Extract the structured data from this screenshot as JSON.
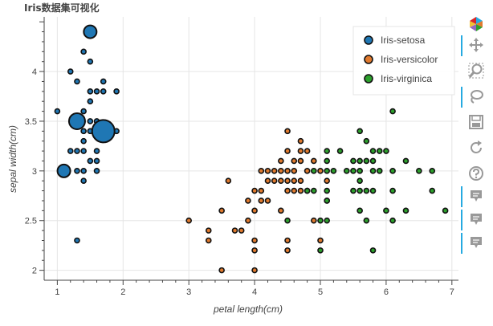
{
  "chart_data": {
    "type": "scatter",
    "title": "Iris数据集可视化",
    "xlabel": "petal length(cm)",
    "ylabel": "sepal width(cm)",
    "xlim": [
      0.8,
      7.1
    ],
    "ylim": [
      1.9,
      4.55
    ],
    "x_ticks": [
      1,
      2,
      3,
      4,
      5,
      6,
      7
    ],
    "y_ticks": [
      2,
      2.5,
      3,
      3.5,
      4
    ],
    "grid": true,
    "legend_position": "top-right",
    "series": [
      {
        "name": "Iris-setosa",
        "color": "#1f77b4",
        "points": [
          [
            1.0,
            3.6
          ],
          [
            1.1,
            3.0
          ],
          [
            1.2,
            4.0
          ],
          [
            1.2,
            3.2
          ],
          [
            1.3,
            3.9
          ],
          [
            1.3,
            3.5
          ],
          [
            1.3,
            3.2
          ],
          [
            1.3,
            3.0
          ],
          [
            1.3,
            2.3
          ],
          [
            1.4,
            4.2
          ],
          [
            1.4,
            3.6
          ],
          [
            1.4,
            3.4
          ],
          [
            1.4,
            3.3
          ],
          [
            1.4,
            3.2
          ],
          [
            1.4,
            3.0
          ],
          [
            1.4,
            2.9
          ],
          [
            1.5,
            4.4
          ],
          [
            1.5,
            4.1
          ],
          [
            1.5,
            3.8
          ],
          [
            1.5,
            3.7
          ],
          [
            1.5,
            3.5
          ],
          [
            1.5,
            3.4
          ],
          [
            1.5,
            3.1
          ],
          [
            1.6,
            3.8
          ],
          [
            1.6,
            3.5
          ],
          [
            1.6,
            3.4
          ],
          [
            1.6,
            3.2
          ],
          [
            1.6,
            3.1
          ],
          [
            1.6,
            3.0
          ],
          [
            1.7,
            3.9
          ],
          [
            1.7,
            3.8
          ],
          [
            1.7,
            3.4
          ],
          [
            1.9,
            3.8
          ],
          [
            1.9,
            3.4
          ]
        ],
        "big_points": [
          {
            "x": 1.5,
            "y": 4.4,
            "r": 8
          },
          {
            "x": 1.3,
            "y": 3.5,
            "r": 10
          },
          {
            "x": 1.1,
            "y": 3.0,
            "r": 8
          },
          {
            "x": 1.7,
            "y": 3.4,
            "r": 14
          }
        ]
      },
      {
        "name": "Iris-versicolor",
        "color": "#e07a2e",
        "points": [
          [
            3.0,
            2.5
          ],
          [
            3.3,
            2.4
          ],
          [
            3.3,
            2.3
          ],
          [
            3.5,
            2.6
          ],
          [
            3.5,
            2.0
          ],
          [
            3.6,
            2.9
          ],
          [
            3.7,
            2.4
          ],
          [
            3.8,
            2.4
          ],
          [
            3.9,
            2.7
          ],
          [
            3.9,
            2.5
          ],
          [
            4.0,
            2.8
          ],
          [
            4.0,
            2.6
          ],
          [
            4.0,
            2.3
          ],
          [
            4.0,
            2.2
          ],
          [
            4.0,
            2.0
          ],
          [
            4.1,
            3.0
          ],
          [
            4.1,
            2.8
          ],
          [
            4.1,
            2.7
          ],
          [
            4.2,
            3.0
          ],
          [
            4.2,
            2.9
          ],
          [
            4.2,
            2.7
          ],
          [
            4.3,
            3.0
          ],
          [
            4.3,
            2.9
          ],
          [
            4.4,
            3.1
          ],
          [
            4.4,
            3.0
          ],
          [
            4.4,
            2.9
          ],
          [
            4.4,
            2.6
          ],
          [
            4.5,
            3.4
          ],
          [
            4.5,
            3.2
          ],
          [
            4.5,
            3.0
          ],
          [
            4.5,
            2.9
          ],
          [
            4.5,
            2.8
          ],
          [
            4.5,
            2.3
          ],
          [
            4.5,
            2.2
          ],
          [
            4.6,
            3.1
          ],
          [
            4.6,
            3.0
          ],
          [
            4.6,
            2.9
          ],
          [
            4.6,
            2.8
          ],
          [
            4.7,
            3.3
          ],
          [
            4.7,
            3.2
          ],
          [
            4.7,
            3.1
          ],
          [
            4.7,
            2.9
          ],
          [
            4.7,
            2.8
          ],
          [
            4.8,
            3.2
          ],
          [
            4.8,
            3.0
          ],
          [
            4.8,
            2.8
          ],
          [
            4.9,
            3.1
          ],
          [
            4.9,
            2.5
          ],
          [
            5.0,
            3.0
          ],
          [
            5.0,
            2.3
          ],
          [
            5.1,
            2.9
          ],
          [
            5.1,
            2.7
          ]
        ]
      },
      {
        "name": "Iris-virginica",
        "color": "#2ca02c",
        "points": [
          [
            4.5,
            2.5
          ],
          [
            4.8,
            2.8
          ],
          [
            4.9,
            3.0
          ],
          [
            4.9,
            2.8
          ],
          [
            5.0,
            2.5
          ],
          [
            5.0,
            2.2
          ],
          [
            5.1,
            3.2
          ],
          [
            5.1,
            3.1
          ],
          [
            5.1,
            3.0
          ],
          [
            5.1,
            2.8
          ],
          [
            5.1,
            2.7
          ],
          [
            5.1,
            2.5
          ],
          [
            5.2,
            3.0
          ],
          [
            5.3,
            3.2
          ],
          [
            5.4,
            3.0
          ],
          [
            5.5,
            3.1
          ],
          [
            5.5,
            3.0
          ],
          [
            5.5,
            2.8
          ],
          [
            5.6,
            3.4
          ],
          [
            5.6,
            3.1
          ],
          [
            5.6,
            3.0
          ],
          [
            5.6,
            2.9
          ],
          [
            5.6,
            2.8
          ],
          [
            5.6,
            2.6
          ],
          [
            5.7,
            3.3
          ],
          [
            5.7,
            3.1
          ],
          [
            5.7,
            2.8
          ],
          [
            5.7,
            2.5
          ],
          [
            5.8,
            3.2
          ],
          [
            5.8,
            3.1
          ],
          [
            5.8,
            3.0
          ],
          [
            5.8,
            2.8
          ],
          [
            5.8,
            2.2
          ],
          [
            5.9,
            3.2
          ],
          [
            5.9,
            3.0
          ],
          [
            6.0,
            3.2
          ],
          [
            6.0,
            2.6
          ],
          [
            6.1,
            3.6
          ],
          [
            6.1,
            3.0
          ],
          [
            6.1,
            2.8
          ],
          [
            6.1,
            2.5
          ],
          [
            6.3,
            3.1
          ],
          [
            6.3,
            2.6
          ],
          [
            6.5,
            3.0
          ],
          [
            6.7,
            3.0
          ],
          [
            6.7,
            2.8
          ],
          [
            6.9,
            2.6
          ]
        ]
      }
    ]
  },
  "toolbar": {
    "items": [
      {
        "name": "bokeh-logo-icon",
        "icon": "logo",
        "active": false
      },
      {
        "name": "pan-tool-icon",
        "icon": "pan",
        "active": true
      },
      {
        "name": "zoom-tool-icon",
        "icon": "zoom",
        "active": false
      },
      {
        "name": "lasso-tool-icon",
        "icon": "lasso",
        "active": true
      },
      {
        "name": "save-tool-icon",
        "icon": "save",
        "active": false
      },
      {
        "name": "reset-tool-icon",
        "icon": "reset",
        "active": false
      },
      {
        "name": "help-tool-icon",
        "icon": "help",
        "active": false
      },
      {
        "name": "hover-tool-icon",
        "icon": "hover",
        "active": true
      },
      {
        "name": "hover-tool-icon",
        "icon": "hover",
        "active": true
      },
      {
        "name": "hover-tool-icon",
        "icon": "hover",
        "active": true
      }
    ]
  }
}
